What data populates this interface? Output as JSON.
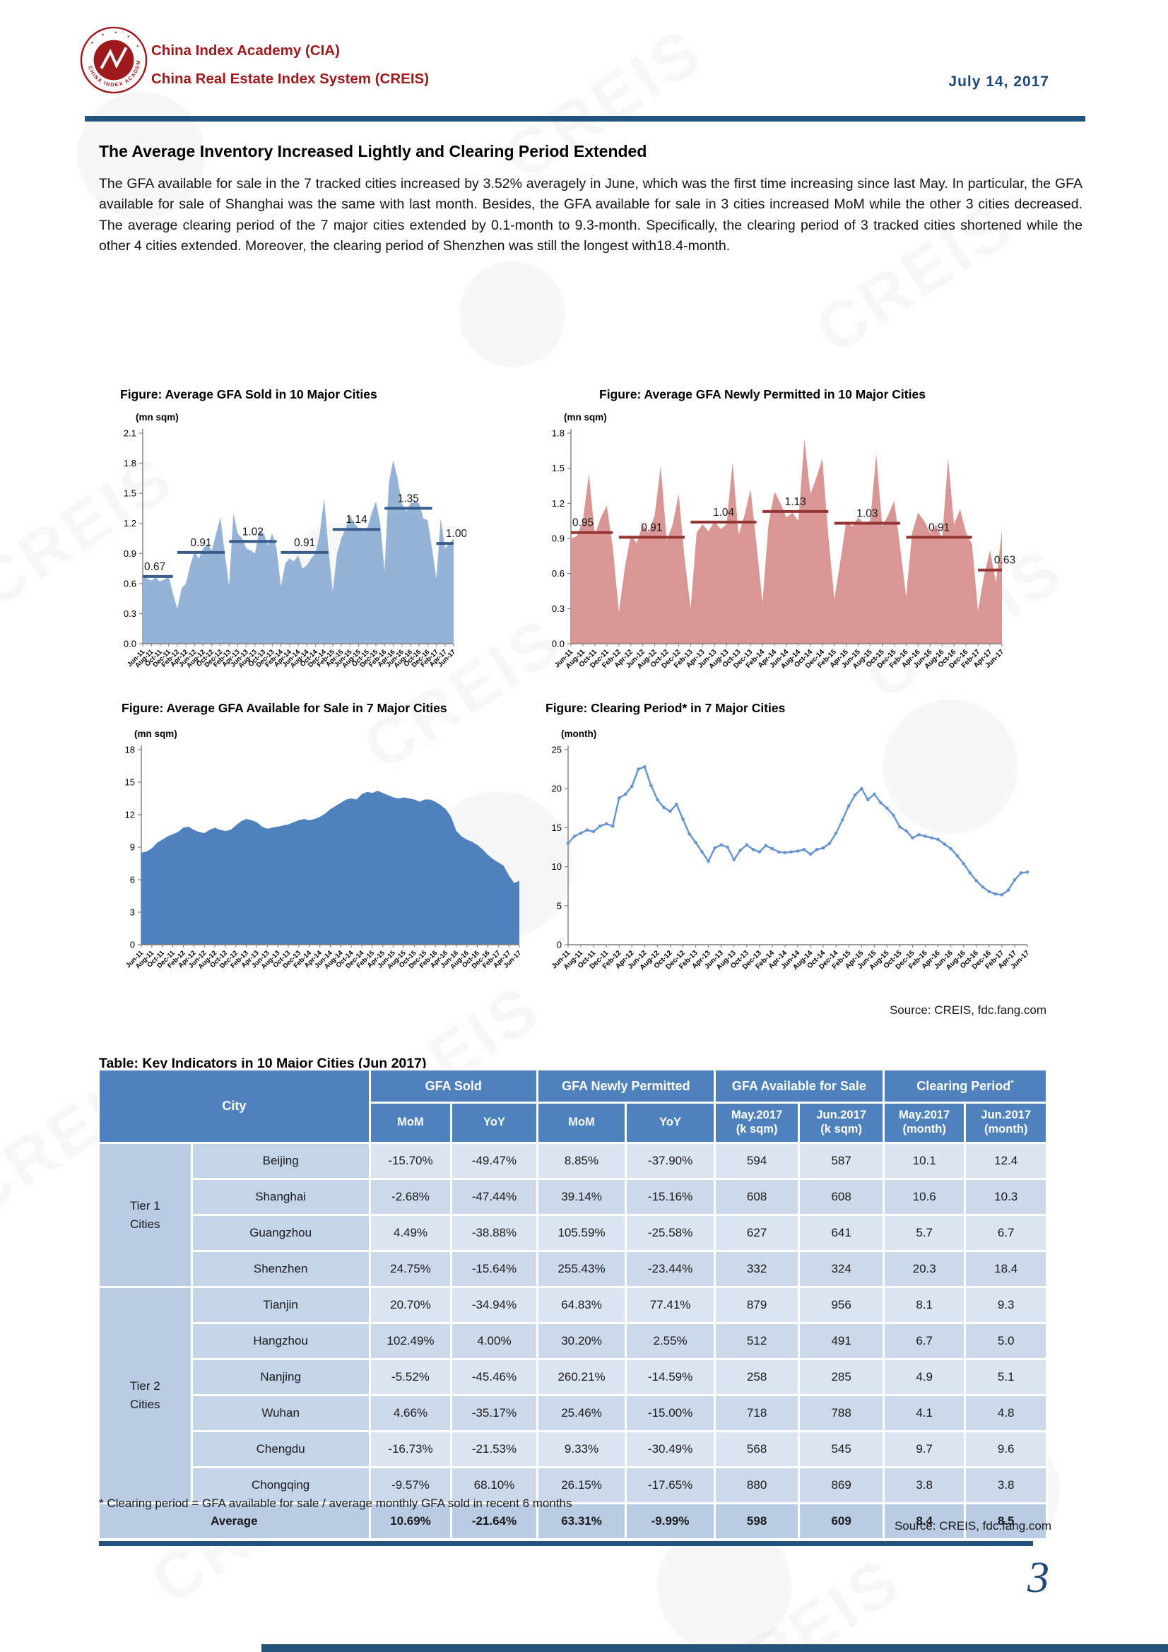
{
  "page": {
    "page_number": "3",
    "watermark_text": "CREIS"
  },
  "header": {
    "org_line1": "China Index Academy (CIA)",
    "org_line2": "China Real Estate Index System (CREIS)",
    "date": "July 14, 2017",
    "logo_ring_text": "CHINA INDEX ACADEMY"
  },
  "article": {
    "title": "The Average Inventory Increased Lightly and Clearing Period Extended",
    "paragraph": "The GFA available for sale in the 7 tracked cities increased by 3.52% averagely in June, which was the first time increasing since last May. In particular, the GFA available for sale of Shanghai was the same with last month. Besides, the GFA available for sale in 3 cities increased MoM while the other 3 cities decreased. The average clearing period of the 7 major cities extended by 0.1-month to 9.3-month. Specifically, the clearing period of 3 tracked cities shortened while the other 4 cities extended. Moreover, the clearing period of Shenzhen was still the longest with18.4-month."
  },
  "source_note": "Source: CREIS, fdc.fang.com",
  "chart_data": [
    {
      "type": "area",
      "title": "Figure: Average GFA Sold in 10 Major Cities",
      "unit": "(mn sqm)",
      "ylim": [
        0,
        2.1
      ],
      "ytick_step": 0.3,
      "ytick_decimals": 1,
      "area_color": "#95b3d7",
      "avg_line_color": "#385d8a",
      "x_labels": [
        "Jun-11",
        "Aug-11",
        "Oct-11",
        "Dec-11",
        "Feb-12",
        "Apr-12",
        "Jun-12",
        "Aug-12",
        "Oct-12",
        "Dec-12",
        "Feb-13",
        "Apr-13",
        "Jun-13",
        "Aug-13",
        "Oct-13",
        "Dec-13",
        "Feb-14",
        "Apr-14",
        "Jun-14",
        "Aug-14",
        "Oct-14",
        "Dec-14",
        "Feb-15",
        "Apr-15",
        "Jun-15",
        "Aug-15",
        "Oct-15",
        "Dec-15",
        "Feb-16",
        "Apr-16",
        "Jun-16",
        "Aug-16",
        "Oct-16",
        "Dec-16",
        "Feb-17",
        "Apr-17",
        "Jun-17"
      ],
      "values": [
        0.68,
        0.65,
        0.63,
        0.66,
        0.62,
        0.64,
        0.67,
        0.5,
        0.35,
        0.55,
        0.6,
        0.78,
        0.92,
        0.85,
        0.95,
        1.0,
        0.93,
        1.1,
        1.26,
        0.9,
        0.58,
        1.3,
        1.1,
        1.05,
        0.95,
        0.93,
        0.9,
        1.13,
        1.1,
        0.98,
        1.1,
        0.95,
        0.57,
        0.8,
        0.85,
        0.82,
        0.88,
        0.75,
        0.78,
        0.85,
        0.9,
        1.1,
        1.45,
        0.95,
        0.52,
        0.9,
        1.05,
        1.15,
        1.28,
        1.2,
        1.15,
        1.12,
        1.15,
        1.3,
        1.42,
        1.2,
        0.72,
        1.6,
        1.83,
        1.65,
        1.4,
        1.32,
        1.4,
        1.42,
        1.4,
        1.25,
        1.23,
        0.95,
        0.65,
        1.25,
        0.95,
        1.0,
        1.05
      ],
      "segments": [
        {
          "label": "0.67",
          "value": 0.67,
          "start": 0,
          "end": 7,
          "label_pos": "start"
        },
        {
          "label": "0.91",
          "value": 0.91,
          "start": 8,
          "end": 19,
          "label_pos": "center"
        },
        {
          "label": "1.02",
          "value": 1.02,
          "start": 20,
          "end": 31,
          "label_pos": "center"
        },
        {
          "label": "0.91",
          "value": 0.91,
          "start": 32,
          "end": 43,
          "label_pos": "center"
        },
        {
          "label": "1.14",
          "value": 1.14,
          "start": 44,
          "end": 55,
          "label_pos": "center"
        },
        {
          "label": "1.35",
          "value": 1.35,
          "start": 56,
          "end": 67,
          "label_pos": "center"
        },
        {
          "label": "1.00",
          "value": 1.0,
          "start": 68,
          "end": 72,
          "label_pos": "end"
        }
      ]
    },
    {
      "type": "area",
      "title": "Figure: Average GFA Newly Permitted in 10 Major Cities",
      "unit": "(mn sqm)",
      "ylim": [
        0,
        1.8
      ],
      "ytick_step": 0.3,
      "ytick_decimals": 1,
      "area_color": "#d99694",
      "avg_line_color": "#943634",
      "x_labels": [
        "Jun-11",
        "Aug-11",
        "Oct-11",
        "Dec-11",
        "Feb-12",
        "Apr-12",
        "Jun-12",
        "Aug-12",
        "Oct-12",
        "Dec-12",
        "Feb-13",
        "Apr-13",
        "Jun-13",
        "Aug-13",
        "Oct-13",
        "Dec-13",
        "Feb-14",
        "Apr-14",
        "Jun-14",
        "Aug-14",
        "Oct-14",
        "Dec-14",
        "Feb-15",
        "Apr-15",
        "Jun-15",
        "Aug-15",
        "Oct-15",
        "Dec-15",
        "Feb-16",
        "Apr-16",
        "Jun-16",
        "Aug-16",
        "Oct-16",
        "Dec-16",
        "Feb-17",
        "Apr-17",
        "Jun-17"
      ],
      "values": [
        0.9,
        0.92,
        1.05,
        1.45,
        0.93,
        1.08,
        1.18,
        0.82,
        0.27,
        0.65,
        0.93,
        0.86,
        1.02,
        0.95,
        1.1,
        1.52,
        0.88,
        1.02,
        1.28,
        0.72,
        0.3,
        0.95,
        1.02,
        0.96,
        1.05,
        0.98,
        1.02,
        1.55,
        0.93,
        1.1,
        1.32,
        0.85,
        0.35,
        1.02,
        1.3,
        1.2,
        1.08,
        1.12,
        1.05,
        1.75,
        1.28,
        1.42,
        1.58,
        0.92,
        0.38,
        0.7,
        1.05,
        1.0,
        1.08,
        1.02,
        1.05,
        1.62,
        1.0,
        1.1,
        1.22,
        0.82,
        0.4,
        0.95,
        1.12,
        1.05,
        0.95,
        1.02,
        0.9,
        1.58,
        1.02,
        1.15,
        0.95,
        0.85,
        0.28,
        0.58,
        0.8,
        0.52,
        0.97
      ],
      "segments": [
        {
          "label": "0.95",
          "value": 0.95,
          "start": 0,
          "end": 7,
          "label_pos": "start"
        },
        {
          "label": "0.91",
          "value": 0.91,
          "start": 8,
          "end": 19,
          "label_pos": "center"
        },
        {
          "label": "1.04",
          "value": 1.04,
          "start": 20,
          "end": 31,
          "label_pos": "center"
        },
        {
          "label": "1.13",
          "value": 1.13,
          "start": 32,
          "end": 43,
          "label_pos": "center"
        },
        {
          "label": "1.03",
          "value": 1.03,
          "start": 44,
          "end": 55,
          "label_pos": "center"
        },
        {
          "label": "0.91",
          "value": 0.91,
          "start": 56,
          "end": 67,
          "label_pos": "center"
        },
        {
          "label": "0.63",
          "value": 0.63,
          "start": 68,
          "end": 72,
          "label_pos": "end"
        }
      ]
    },
    {
      "type": "area",
      "title": "Figure: Average GFA Available for Sale in 7 Major Cities",
      "unit": "(mn sqm)",
      "ylim": [
        0,
        18
      ],
      "ytick_step": 3,
      "ytick_decimals": 0,
      "area_color": "#4f81bd",
      "avg_line_color": "#385d8a",
      "x_labels": [
        "Jun-11",
        "Aug-11",
        "Oct-11",
        "Dec-11",
        "Feb-12",
        "Apr-12",
        "Jun-12",
        "Aug-12",
        "Oct-12",
        "Dec-12",
        "Feb-13",
        "Apr-13",
        "Jun-13",
        "Aug-13",
        "Oct-13",
        "Dec-13",
        "Feb-14",
        "Apr-14",
        "Jun-14",
        "Aug-14",
        "Oct-14",
        "Dec-14",
        "Feb-15",
        "Apr-15",
        "Jun-15",
        "Aug-15",
        "Oct-15",
        "Dec-15",
        "Feb-16",
        "Apr-16",
        "Jun-16",
        "Aug-16",
        "Oct-16",
        "Dec-16",
        "Feb-17",
        "Apr-17",
        "Jun-17"
      ],
      "values": [
        8.5,
        8.6,
        8.9,
        9.4,
        9.7,
        10.0,
        10.2,
        10.4,
        10.8,
        10.9,
        10.6,
        10.4,
        10.3,
        10.6,
        10.8,
        10.6,
        10.5,
        10.6,
        11.0,
        11.4,
        11.6,
        11.5,
        11.3,
        10.9,
        10.7,
        10.8,
        10.9,
        11.0,
        11.1,
        11.3,
        11.5,
        11.6,
        11.5,
        11.6,
        11.8,
        12.1,
        12.5,
        12.8,
        13.1,
        13.4,
        13.5,
        13.4,
        13.9,
        14.1,
        14.0,
        14.2,
        14.0,
        13.8,
        13.6,
        13.5,
        13.6,
        13.5,
        13.4,
        13.2,
        13.4,
        13.4,
        13.2,
        12.9,
        12.5,
        11.8,
        10.5,
        10.0,
        9.7,
        9.5,
        9.2,
        8.8,
        8.3,
        7.9,
        7.6,
        7.3,
        6.4,
        5.7,
        5.9
      ],
      "segments": []
    },
    {
      "type": "line",
      "title": "Figure: Clearing Period* in 7 Major Cities",
      "unit": "(month)",
      "ylim": [
        0,
        25
      ],
      "ytick_step": 5,
      "ytick_decimals": 0,
      "line_color": "#6694ce",
      "x_labels": [
        "Jun-11",
        "Aug-11",
        "Oct-11",
        "Dec-11",
        "Feb-12",
        "Apr-12",
        "Jun-12",
        "Aug-12",
        "Oct-12",
        "Dec-12",
        "Feb-13",
        "Apr-13",
        "Jun-13",
        "Aug-13",
        "Oct-13",
        "Dec-13",
        "Feb-14",
        "Apr-14",
        "Jun-14",
        "Aug-14",
        "Oct-14",
        "Dec-14",
        "Feb-15",
        "Apr-15",
        "Jun-15",
        "Aug-15",
        "Oct-15",
        "Dec-15",
        "Feb-16",
        "Apr-16",
        "Jun-16",
        "Aug-16",
        "Oct-16",
        "Dec-16",
        "Feb-17",
        "Apr-17",
        "Jun-17"
      ],
      "values": [
        13.0,
        13.9,
        14.3,
        14.7,
        14.5,
        15.2,
        15.5,
        15.2,
        18.8,
        19.3,
        20.3,
        22.5,
        22.8,
        20.4,
        18.6,
        17.6,
        17.1,
        18.0,
        16.1,
        14.2,
        13.1,
        11.9,
        10.7,
        12.4,
        12.8,
        12.5,
        10.9,
        12.1,
        12.8,
        12.2,
        11.9,
        12.7,
        12.3,
        11.9,
        11.8,
        11.9,
        12.0,
        12.2,
        11.6,
        12.2,
        12.4,
        13.0,
        14.3,
        16.0,
        17.8,
        19.2,
        20.0,
        18.6,
        19.3,
        18.2,
        17.5,
        16.6,
        15.1,
        14.6,
        13.7,
        14.1,
        13.9,
        13.7,
        13.5,
        12.9,
        12.3,
        11.4,
        10.4,
        9.2,
        8.2,
        7.4,
        6.8,
        6.5,
        6.4,
        7.0,
        8.3,
        9.2,
        9.3
      ],
      "segments": []
    }
  ],
  "table": {
    "title": "Table: Key Indicators in 10 Major Cities (Jun 2017)",
    "city_header": "City",
    "col_groups": [
      {
        "label": "GFA Sold",
        "sup": "",
        "cols": [
          "MoM",
          "YoY"
        ]
      },
      {
        "label": "GFA Newly Permitted",
        "sup": "",
        "cols": [
          "MoM",
          "YoY"
        ]
      },
      {
        "label": "GFA Available for Sale",
        "sup": "",
        "cols": [
          "May.2017\n(k sqm)",
          "Jun.2017\n(k sqm)"
        ]
      },
      {
        "label": "Clearing Period",
        "sup": "*",
        "cols": [
          "May.2017\n(month)",
          "Jun.2017\n(month)"
        ]
      }
    ],
    "tiers": [
      {
        "label": "Tier 1\nCities",
        "cities": [
          {
            "name": "Beijing",
            "values": [
              "-15.70%",
              "-49.47%",
              "8.85%",
              "-37.90%",
              "594",
              "587",
              "10.1",
              "12.4"
            ]
          },
          {
            "name": "Shanghai",
            "values": [
              "-2.68%",
              "-47.44%",
              "39.14%",
              "-15.16%",
              "608",
              "608",
              "10.6",
              "10.3"
            ]
          },
          {
            "name": "Guangzhou",
            "values": [
              "4.49%",
              "-38.88%",
              "105.59%",
              "-25.58%",
              "627",
              "641",
              "5.7",
              "6.7"
            ]
          },
          {
            "name": "Shenzhen",
            "values": [
              "24.75%",
              "-15.64%",
              "255.43%",
              "-23.44%",
              "332",
              "324",
              "20.3",
              "18.4"
            ]
          }
        ]
      },
      {
        "label": "Tier 2\nCities",
        "cities": [
          {
            "name": "Tianjin",
            "values": [
              "20.70%",
              "-34.94%",
              "64.83%",
              "77.41%",
              "879",
              "956",
              "8.1",
              "9.3"
            ]
          },
          {
            "name": "Hangzhou",
            "values": [
              "102.49%",
              "4.00%",
              "30.20%",
              "2.55%",
              "512",
              "491",
              "6.7",
              "5.0"
            ]
          },
          {
            "name": "Nanjing",
            "values": [
              "-5.52%",
              "-45.46%",
              "260.21%",
              "-14.59%",
              "258",
              "285",
              "4.9",
              "5.1"
            ]
          },
          {
            "name": "Wuhan",
            "values": [
              "4.66%",
              "-35.17%",
              "25.46%",
              "-15.00%",
              "718",
              "788",
              "4.1",
              "4.8"
            ]
          },
          {
            "name": "Chengdu",
            "values": [
              "-16.73%",
              "-21.53%",
              "9.33%",
              "-30.49%",
              "568",
              "545",
              "9.7",
              "9.6"
            ]
          },
          {
            "name": "Chongqing",
            "values": [
              "-9.57%",
              "68.10%",
              "26.15%",
              "-17.65%",
              "880",
              "869",
              "3.8",
              "3.8"
            ]
          }
        ]
      }
    ],
    "average": {
      "label": "Average",
      "values": [
        "10.69%",
        "-21.64%",
        "63.31%",
        "-9.99%",
        "598",
        "609",
        "8.4",
        "8.5"
      ]
    },
    "footnote": "* Clearing period = GFA available for sale / average monthly GFA sold in recent 6 months"
  }
}
